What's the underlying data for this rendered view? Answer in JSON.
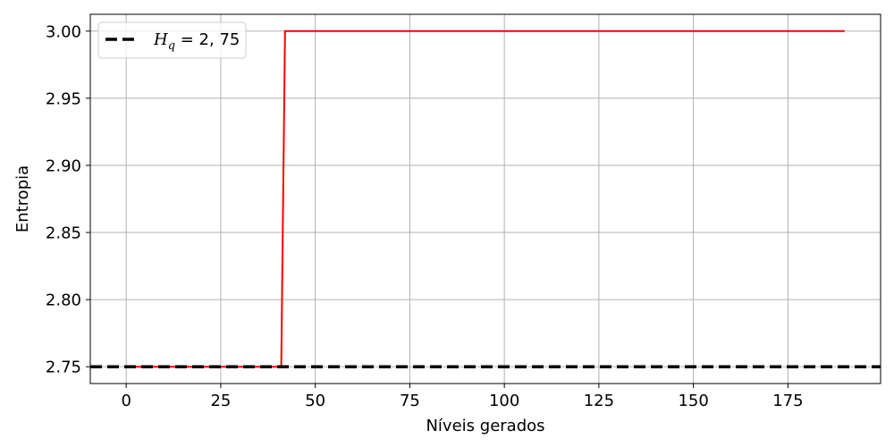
{
  "chart_data": {
    "type": "line",
    "xlabel": "Níveis gerados",
    "ylabel": "Entropia",
    "xlim": [
      -9.5,
      199.5
    ],
    "ylim": [
      2.7375,
      3.0125
    ],
    "xticks": [
      0,
      25,
      50,
      75,
      100,
      125,
      150,
      175
    ],
    "yticks": [
      2.75,
      2.8,
      2.85,
      2.9,
      2.95,
      3.0
    ],
    "ytick_labels": [
      "2.75",
      "2.80",
      "2.85",
      "2.90",
      "2.95",
      "3.00"
    ],
    "grid": true,
    "legend_position": "top-left",
    "series": [
      {
        "color": "#ff0000",
        "style": "solid",
        "x": [
          0,
          41,
          42,
          190
        ],
        "y": [
          2.75,
          2.75,
          3.0,
          3.0
        ]
      },
      {
        "name": "H_q = 2,75",
        "color": "#000000",
        "style": "dashed",
        "hline": 2.75
      }
    ],
    "legend": {
      "label_main": "H",
      "label_sub": "q",
      "label_rest": " = 2, 75"
    }
  }
}
